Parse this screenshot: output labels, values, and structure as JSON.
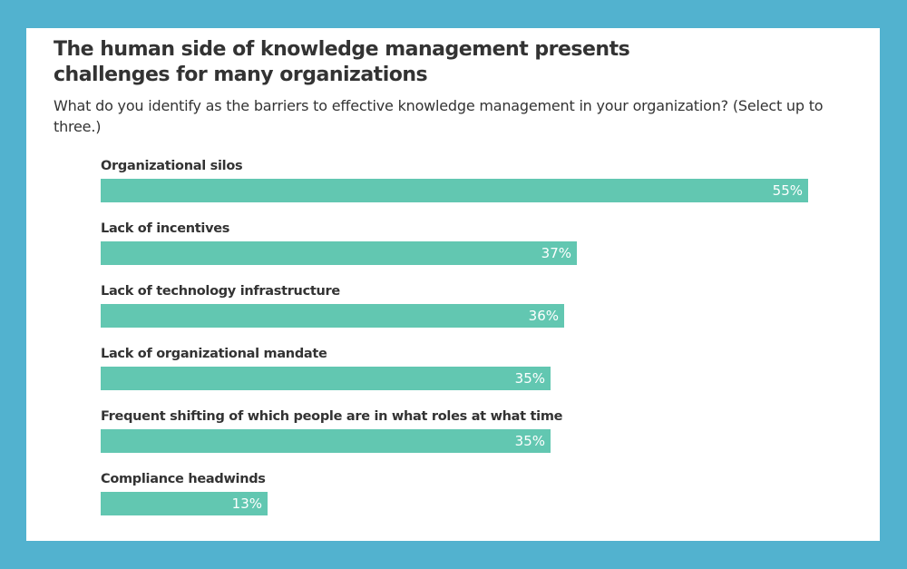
{
  "colors": {
    "background": "#52b2cf",
    "card": "#ffffff",
    "bar": "#62c7b1",
    "text": "#333333",
    "value_text": "#ffffff"
  },
  "header": {
    "title": "The human side of knowledge management presents challenges for many organizations",
    "subtitle": "What do you identify as the barriers to effective knowledge management in your organization? (Select up to three.)"
  },
  "chart_data": {
    "type": "bar",
    "orientation": "horizontal",
    "title": "The human side of knowledge management presents challenges for many organizations",
    "subtitle": "What do you identify as the barriers to effective knowledge management in your organization? (Select up to three.)",
    "categories": [
      "Organizational silos",
      "Lack of incentives",
      "Lack of technology infrastructure",
      "Lack of organizational mandate",
      "Frequent shifting of which people are in what roles at what time",
      "Compliance headwinds"
    ],
    "values": [
      55,
      37,
      36,
      35,
      35,
      13
    ],
    "value_labels": [
      "55%",
      "37%",
      "36%",
      "35%",
      "35%",
      "13%"
    ],
    "unit": "%",
    "grid": false,
    "legend": "none"
  }
}
